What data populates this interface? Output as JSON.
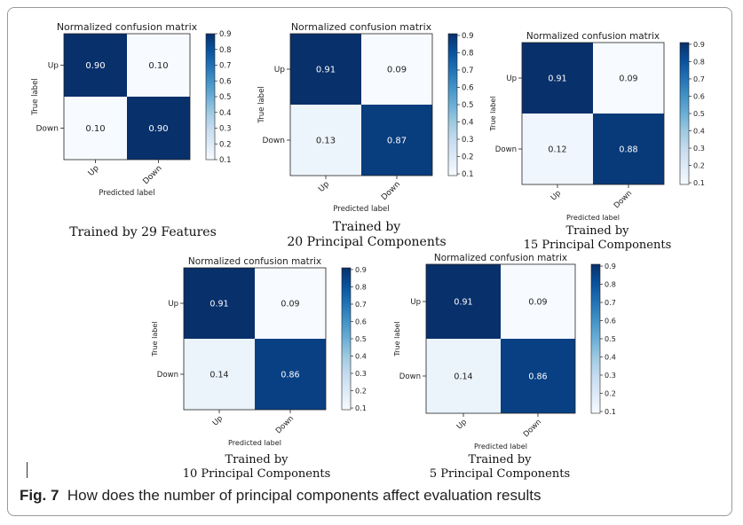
{
  "figure": {
    "label": "Fig. 7",
    "caption": "How does the number of principal components affect evaluation results"
  },
  "colors": {
    "dark": "#08306b",
    "light": "#f7fbff"
  },
  "chart_data": [
    {
      "type": "heatmap",
      "title": "Normalized confusion matrix",
      "xlabel": "Predicted label",
      "ylabel": "True label",
      "x_categories": [
        "Up",
        "Down"
      ],
      "y_categories": [
        "Up",
        "Down"
      ],
      "values": [
        [
          0.9,
          0.1
        ],
        [
          0.1,
          0.9
        ]
      ],
      "value_labels": [
        [
          "0.90",
          "0.10"
        ],
        [
          "0.10",
          "0.90"
        ]
      ],
      "colorbar_ticks": [
        "0.9",
        "0.8",
        "0.7",
        "0.6",
        "0.5",
        "0.4",
        "0.3",
        "0.2",
        "0.1"
      ],
      "vmin": 0.1,
      "vmax": 0.9,
      "caption_lines": [
        "Trained by 29 Features"
      ]
    },
    {
      "type": "heatmap",
      "title": "Normalized confusion matrix",
      "xlabel": "Predicted label",
      "ylabel": "True label",
      "x_categories": [
        "Up",
        "Down"
      ],
      "y_categories": [
        "Up",
        "Down"
      ],
      "values": [
        [
          0.91,
          0.09
        ],
        [
          0.13,
          0.87
        ]
      ],
      "value_labels": [
        [
          "0.91",
          "0.09"
        ],
        [
          "0.13",
          "0.87"
        ]
      ],
      "colorbar_ticks": [
        "0.9",
        "0.8",
        "0.7",
        "0.6",
        "0.5",
        "0.4",
        "0.3",
        "0.2",
        "0.1"
      ],
      "vmin": 0.09,
      "vmax": 0.91,
      "caption_lines": [
        "Trained by",
        "20 Principal Components"
      ]
    },
    {
      "type": "heatmap",
      "title": "Normalized confusion matrix",
      "xlabel": "Predicted label",
      "ylabel": "True label",
      "x_categories": [
        "Up",
        "Down"
      ],
      "y_categories": [
        "Up",
        "Down"
      ],
      "values": [
        [
          0.91,
          0.09
        ],
        [
          0.12,
          0.88
        ]
      ],
      "value_labels": [
        [
          "0.91",
          "0.09"
        ],
        [
          "0.12",
          "0.88"
        ]
      ],
      "colorbar_ticks": [
        "0.9",
        "0.8",
        "0.7",
        "0.6",
        "0.5",
        "0.4",
        "0.3",
        "0.2",
        "0.1"
      ],
      "vmin": 0.09,
      "vmax": 0.91,
      "caption_lines": [
        "Trained by",
        "15 Principal Components"
      ]
    },
    {
      "type": "heatmap",
      "title": "Normalized confusion matrix",
      "xlabel": "Predicted label",
      "ylabel": "True label",
      "x_categories": [
        "Up",
        "Down"
      ],
      "y_categories": [
        "Up",
        "Down"
      ],
      "values": [
        [
          0.91,
          0.09
        ],
        [
          0.14,
          0.86
        ]
      ],
      "value_labels": [
        [
          "0.91",
          "0.09"
        ],
        [
          "0.14",
          "0.86"
        ]
      ],
      "colorbar_ticks": [
        "0.9",
        "0.8",
        "0.7",
        "0.6",
        "0.5",
        "0.4",
        "0.3",
        "0.2",
        "0.1"
      ],
      "vmin": 0.09,
      "vmax": 0.91,
      "caption_lines": [
        "Trained by",
        "10 Principal Components"
      ]
    },
    {
      "type": "heatmap",
      "title": "Normalized confusion matrix",
      "xlabel": "Predicted label",
      "ylabel": "True label",
      "x_categories": [
        "Up",
        "Down"
      ],
      "y_categories": [
        "Up",
        "Down"
      ],
      "values": [
        [
          0.91,
          0.09
        ],
        [
          0.14,
          0.86
        ]
      ],
      "value_labels": [
        [
          "0.91",
          "0.09"
        ],
        [
          "0.14",
          "0.86"
        ]
      ],
      "colorbar_ticks": [
        "0.9",
        "0.8",
        "0.7",
        "0.6",
        "0.5",
        "0.4",
        "0.3",
        "0.2",
        "0.1"
      ],
      "vmin": 0.09,
      "vmax": 0.91,
      "caption_lines": [
        "Trained by",
        "5 Principal Components"
      ]
    }
  ]
}
